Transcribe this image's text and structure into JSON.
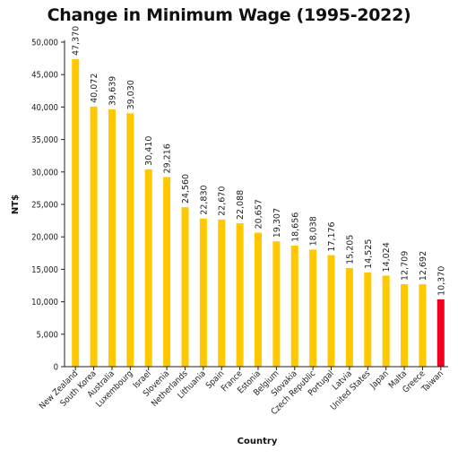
{
  "chart_data": {
    "type": "bar",
    "title": "Change in Minimum Wage (1995-2022)",
    "xlabel": "Country",
    "ylabel": "NT$",
    "ylim": [
      0,
      50000
    ],
    "yticks": [
      0,
      5000,
      10000,
      15000,
      20000,
      25000,
      30000,
      35000,
      40000,
      45000,
      50000
    ],
    "ytick_labels": [
      "0",
      "5,000",
      "10,000",
      "15,000",
      "20,000",
      "25,000",
      "30,000",
      "35,000",
      "40,000",
      "45,000",
      "50,000"
    ],
    "grid": false,
    "legend": "none",
    "bar_color": "#FFC800",
    "highlight_color": "#F0001C",
    "highlight_category": "Taiwan",
    "categories": [
      "New Zealand",
      "South Korea",
      "Australia",
      "Luxembourg",
      "Israel",
      "Slovenia",
      "Netherlands",
      "Lithuania",
      "Spain",
      "France",
      "Estonia",
      "Belgium",
      "Slovakia",
      "Czech Republic",
      "Portugal",
      "Latvia",
      "United States",
      "Japan",
      "Malta",
      "Greece",
      "Taiwan"
    ],
    "values": [
      47370,
      40072,
      39639,
      39030,
      30410,
      29216,
      24560,
      22830,
      22670,
      22088,
      20657,
      19307,
      18656,
      18038,
      17176,
      15205,
      14525,
      14024,
      12709,
      12692,
      10370
    ],
    "value_labels": [
      "47,370",
      "40,072",
      "39,639",
      "39,030",
      "30,410",
      "29,216",
      "24,560",
      "22,830",
      "22,670",
      "22,088",
      "20,657",
      "19,307",
      "18,656",
      "18,038",
      "17,176",
      "15,205",
      "14,525",
      "14,024",
      "12,709",
      "12,692",
      "10,370"
    ]
  }
}
